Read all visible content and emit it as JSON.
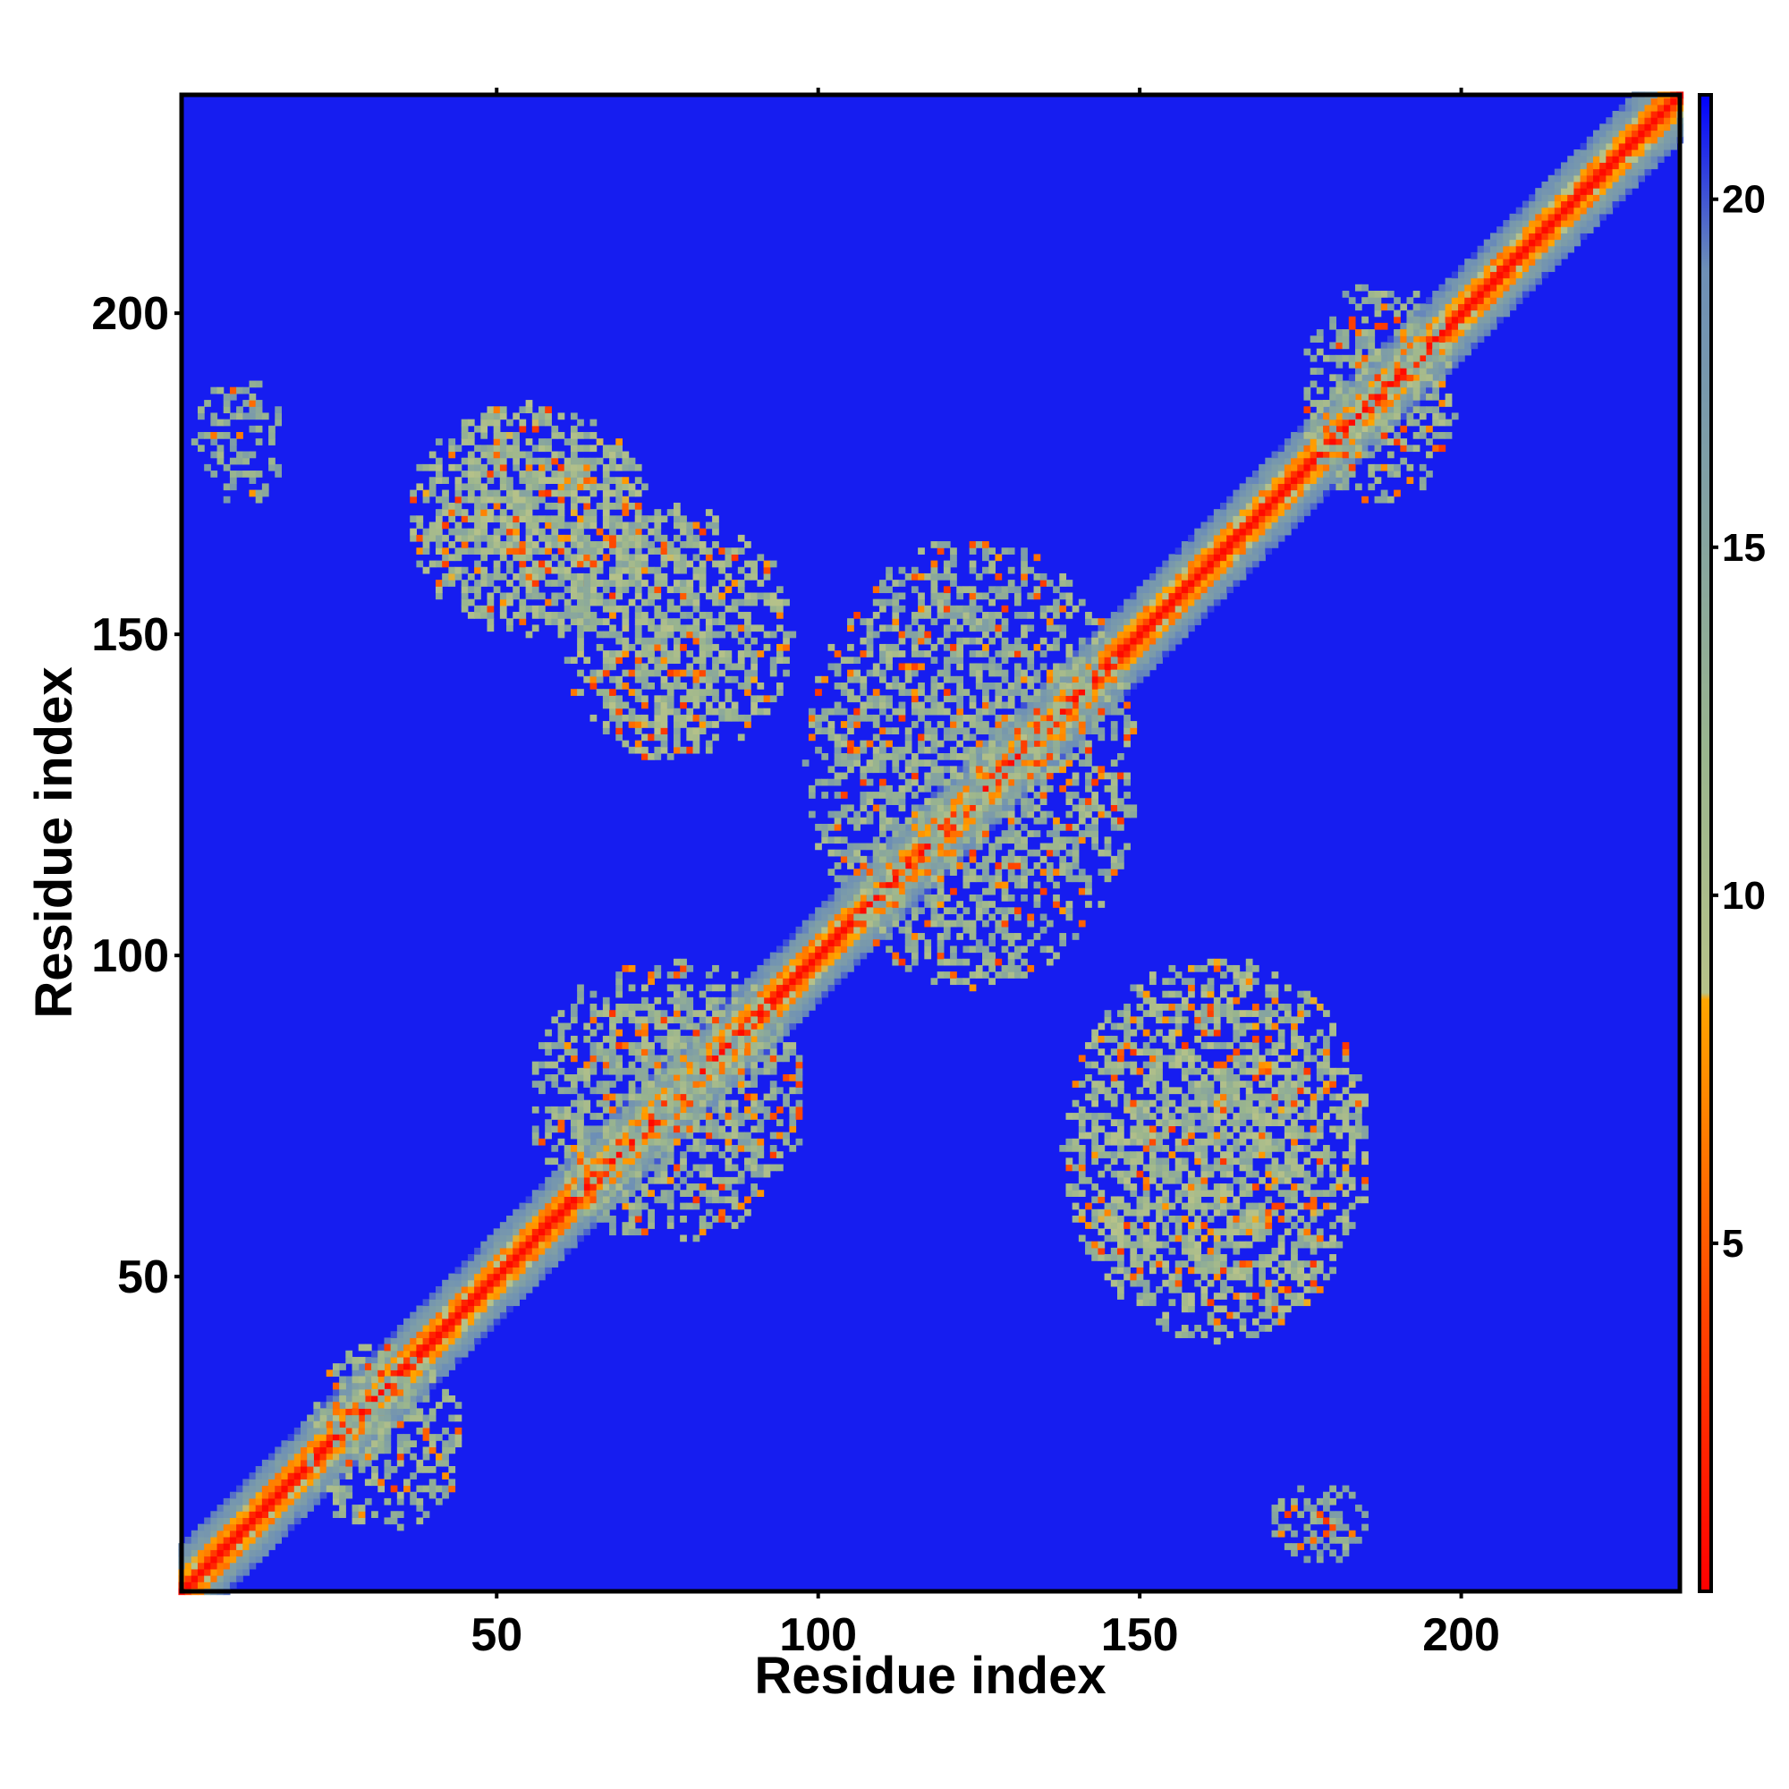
{
  "chart_data": {
    "type": "heatmap",
    "title": "",
    "xlabel": "Residue index",
    "ylabel": "Residue index",
    "xlim": [
      1,
      234
    ],
    "ylim": [
      1,
      234
    ],
    "x_ticks": [
      50,
      100,
      150,
      200
    ],
    "y_ticks": [
      50,
      100,
      150,
      200
    ],
    "colorbar": {
      "ticks": [
        5,
        10,
        15,
        20
      ],
      "range": [
        0,
        21.5
      ],
      "stops": [
        {
          "value": 0,
          "color": "#ff0000"
        },
        {
          "value": 4,
          "color": "#ff4500"
        },
        {
          "value": 8.5,
          "color": "#ffa500"
        },
        {
          "value": 8.6,
          "color": "#b7c289"
        },
        {
          "value": 12,
          "color": "#9ab58e"
        },
        {
          "value": 19,
          "color": "#6d8fb6"
        },
        {
          "value": 21.5,
          "color": "#0000ff"
        }
      ]
    },
    "background_value": 21,
    "contact_regions": [
      {
        "x": [
          1,
          234
        ],
        "y": [
          1,
          234
        ],
        "diagonal": true,
        "width": 7,
        "value": 3
      },
      {
        "x": [
          36,
          74
        ],
        "y": [
          150,
          186
        ],
        "value": 12,
        "density": 0.7
      },
      {
        "x": [
          60,
          96
        ],
        "y": [
          130,
          170
        ],
        "value": 12,
        "density": 0.6
      },
      {
        "x": [
          98,
          150
        ],
        "y": [
          95,
          165
        ],
        "value": 13,
        "density": 0.55
      },
      {
        "x": [
          55,
          98
        ],
        "y": [
          55,
          100
        ],
        "value": 13,
        "density": 0.55
      },
      {
        "x": [
          138,
          186
        ],
        "y": [
          40,
          100
        ],
        "value": 12,
        "density": 0.65
      },
      {
        "x": [
          3,
          17
        ],
        "y": [
          170,
          190
        ],
        "value": 14,
        "density": 0.4
      },
      {
        "x": [
          170,
          186
        ],
        "y": [
          5,
          18
        ],
        "value": 14,
        "density": 0.4
      },
      {
        "x": [
          175,
          200
        ],
        "y": [
          170,
          205
        ],
        "value": 13,
        "density": 0.5
      },
      {
        "x": [
          20,
          45
        ],
        "y": [
          10,
          40
        ],
        "value": 13,
        "density": 0.5
      }
    ]
  }
}
